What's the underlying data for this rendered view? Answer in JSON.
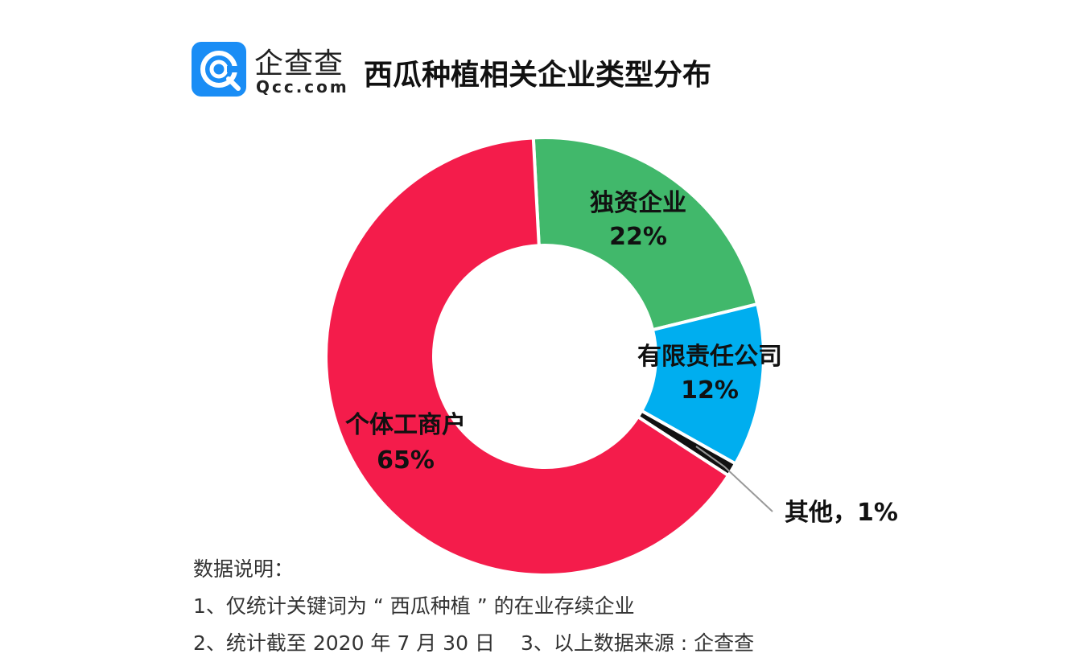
{
  "brand": {
    "name": "企查查",
    "domain": "Qcc.com"
  },
  "chart_data": {
    "type": "pie",
    "title": "西瓜种植相关企业类型分布",
    "slices": [
      {
        "label": "独资企业",
        "value": 22,
        "display": "22%",
        "color": "#41B86B"
      },
      {
        "label": "有限责任公司",
        "value": 12,
        "display": "12%",
        "color": "#00AEEF"
      },
      {
        "label": "其他",
        "value": 1,
        "display": "1%",
        "color": "#111111",
        "callout": "其他，1%"
      },
      {
        "label": "个体工商户",
        "value": 65,
        "display": "65%",
        "color": "#F41C4B"
      }
    ]
  },
  "notes": {
    "heading": "数据说明：",
    "line1": "1、仅统计关键词为 “ 西瓜种植 ” 的在业存续企业",
    "line2": "2、统计截至 2020 年 7 月 30 日",
    "source": "3、以上数据来源 : 企查查"
  }
}
